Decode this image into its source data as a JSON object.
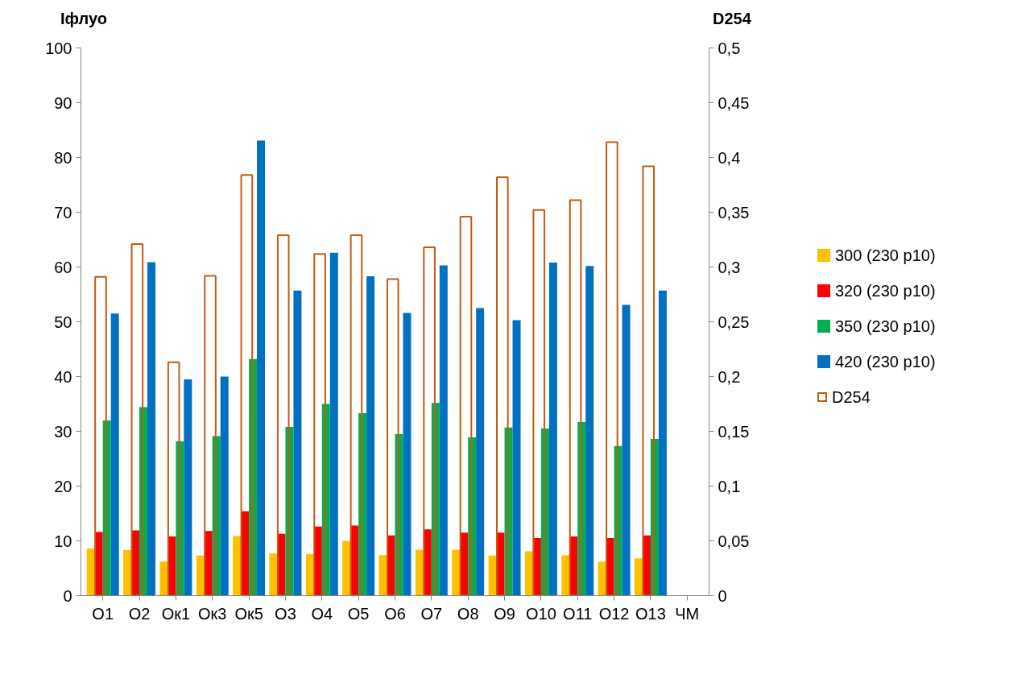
{
  "chart_data": {
    "type": "bar",
    "categories": [
      "О1",
      "О2",
      "Ок1",
      "Ок3",
      "Ок5",
      "О3",
      "О4",
      "О5",
      "О6",
      "О7",
      "О8",
      "О9",
      "О10",
      "О11",
      "О12",
      "О13",
      "ЧМ"
    ],
    "ylabel": "Іфлуо",
    "y2label": "D254",
    "ylim": [
      0,
      100
    ],
    "yticks": [
      0,
      10,
      20,
      30,
      40,
      50,
      60,
      70,
      80,
      90,
      100
    ],
    "y2lim": [
      0,
      0.5
    ],
    "y2ticks": [
      {
        "value": 0,
        "label": "0"
      },
      {
        "value": 0.05,
        "label": "0,05"
      },
      {
        "value": 0.1,
        "label": "0,1"
      },
      {
        "value": 0.15,
        "label": "0,15"
      },
      {
        "value": 0.2,
        "label": "0,2"
      },
      {
        "value": 0.25,
        "label": "0,25"
      },
      {
        "value": 0.3,
        "label": "0,3"
      },
      {
        "value": 0.35,
        "label": "0,35"
      },
      {
        "value": 0.4,
        "label": "0,4"
      },
      {
        "value": 0.45,
        "label": "0,45"
      },
      {
        "value": 0.5,
        "label": "0,5"
      }
    ],
    "grid": false,
    "legend": "right",
    "series": [
      {
        "name": "300 (230 р10)",
        "color": "#ffc000",
        "values": [
          8.6,
          8.3,
          6.2,
          7.3,
          10.9,
          7.7,
          7.6,
          10.0,
          7.4,
          8.4,
          8.4,
          7.3,
          8.1,
          7.4,
          6.2,
          6.8,
          null
        ]
      },
      {
        "name": "320 (230 р10)",
        "color": "#ff0000",
        "values": [
          11.6,
          11.9,
          10.8,
          11.8,
          15.4,
          11.3,
          12.6,
          12.8,
          11.0,
          12.1,
          11.5,
          11.5,
          10.5,
          10.8,
          10.5,
          11.0,
          null
        ]
      },
      {
        "name": "350 (230 р10)",
        "color": "#00b050",
        "values": [
          32.0,
          34.4,
          28.2,
          29.1,
          43.2,
          30.8,
          35.0,
          33.3,
          29.5,
          35.2,
          28.9,
          30.7,
          30.5,
          31.7,
          27.3,
          28.6,
          null
        ]
      },
      {
        "name": "420 (230 р10)",
        "color": "#0070c0",
        "values": [
          51.5,
          60.9,
          39.5,
          40.0,
          83.1,
          55.7,
          62.6,
          58.3,
          51.6,
          60.3,
          52.5,
          50.3,
          60.8,
          60.2,
          53.1,
          55.7,
          null
        ]
      },
      {
        "name": "D254",
        "color": "#c55a11",
        "axis": "y2",
        "values": [
          0.291,
          0.321,
          0.213,
          0.292,
          0.384,
          0.329,
          0.312,
          0.329,
          0.289,
          0.318,
          0.346,
          0.382,
          0.352,
          0.361,
          0.414,
          0.392,
          null
        ]
      }
    ]
  }
}
